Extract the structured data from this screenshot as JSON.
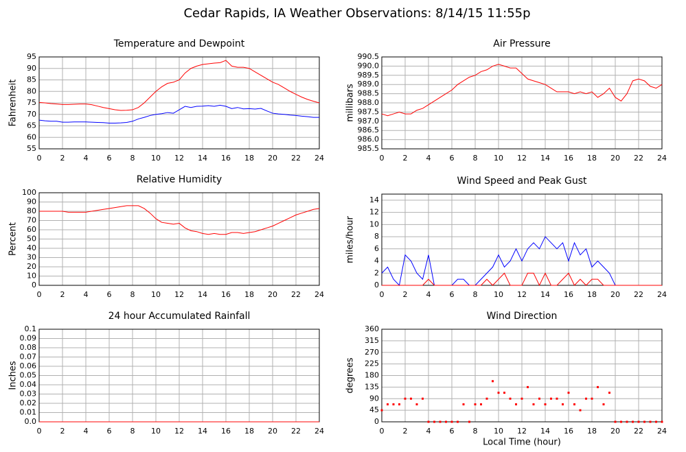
{
  "title": "Cedar Rapids, IA Weather Observations: 8/14/15 11:55p",
  "chart_data": [
    {
      "type": "line",
      "title": "Temperature and Dewpoint",
      "ylabel": "Fahrenheit",
      "x": [
        0,
        0.5,
        1,
        1.5,
        2,
        2.5,
        3,
        3.5,
        4,
        4.5,
        5,
        5.5,
        6,
        6.5,
        7,
        7.5,
        8,
        8.5,
        9,
        9.5,
        10,
        10.5,
        11,
        11.5,
        12,
        12.5,
        13,
        13.5,
        14,
        14.5,
        15,
        15.5,
        16,
        16.5,
        17,
        17.5,
        18,
        18.5,
        19,
        19.5,
        20,
        20.5,
        21,
        21.5,
        22,
        22.5,
        23,
        23.5,
        24
      ],
      "series": [
        {
          "color": "#ff0000",
          "values": [
            75.2,
            75,
            74.7,
            74.5,
            74.3,
            74.3,
            74.4,
            74.5,
            74.5,
            74.2,
            73.6,
            73,
            72.5,
            72,
            71.7,
            71.8,
            72,
            73,
            75,
            77.5,
            80,
            82,
            83.5,
            84,
            85,
            88,
            90,
            91,
            91.7,
            92,
            92.3,
            92.5,
            93.5,
            91,
            90.5,
            90.5,
            90,
            88.5,
            87,
            85.5,
            84,
            83,
            81.5,
            80,
            78.7,
            77.5,
            76.5,
            75.7,
            75
          ]
        },
        {
          "color": "#0000ff",
          "values": [
            67.5,
            67.2,
            67,
            67,
            66.6,
            66.6,
            66.7,
            66.7,
            66.7,
            66.6,
            66.5,
            66.4,
            66.2,
            66.2,
            66.3,
            66.5,
            67,
            68,
            68.7,
            69.5,
            70,
            70.3,
            70.8,
            70.5,
            72,
            73.5,
            73,
            73.5,
            73.6,
            73.8,
            73.5,
            74,
            73.5,
            72.5,
            73,
            72.4,
            72.5,
            72.3,
            72.6,
            71.5,
            70.5,
            70.2,
            70,
            69.7,
            69.5,
            69.2,
            69,
            68.7,
            68.7
          ]
        }
      ],
      "xlim": [
        0,
        24
      ],
      "xticks": [
        0,
        2,
        4,
        6,
        8,
        10,
        12,
        14,
        16,
        18,
        20,
        22,
        24
      ],
      "ylim": [
        55,
        95
      ],
      "yticks": [
        55,
        60,
        65,
        70,
        75,
        80,
        85,
        90,
        95
      ],
      "grid": true
    },
    {
      "type": "line",
      "title": "Air Pressure",
      "ylabel": "millibars",
      "x": [
        0,
        0.5,
        1,
        1.5,
        2,
        2.5,
        3,
        3.5,
        4,
        4.5,
        5,
        5.5,
        6,
        6.5,
        7,
        7.5,
        8,
        8.5,
        9,
        9.5,
        10,
        10.5,
        11,
        11.5,
        12,
        12.5,
        13,
        13.5,
        14,
        14.5,
        15,
        15.5,
        16,
        16.5,
        17,
        17.5,
        18,
        18.5,
        19,
        19.5,
        20,
        20.5,
        21,
        21.5,
        22,
        22.5,
        23,
        23.5,
        24
      ],
      "series": [
        {
          "color": "#ff0000",
          "values": [
            987.4,
            987.3,
            987.4,
            987.5,
            987.4,
            987.4,
            987.6,
            987.7,
            987.9,
            988.1,
            988.3,
            988.5,
            988.7,
            989,
            989.2,
            989.4,
            989.5,
            989.7,
            989.8,
            990,
            990.1,
            990,
            989.9,
            989.9,
            989.6,
            989.3,
            989.2,
            989.1,
            989,
            988.8,
            988.6,
            988.6,
            988.6,
            988.5,
            988.6,
            988.5,
            988.6,
            988.3,
            988.5,
            988.8,
            988.3,
            988.1,
            988.5,
            989.2,
            989.3,
            989.2,
            988.9,
            988.8,
            989
          ]
        }
      ],
      "xlim": [
        0,
        24
      ],
      "xticks": [
        0,
        2,
        4,
        6,
        8,
        10,
        12,
        14,
        16,
        18,
        20,
        22,
        24
      ],
      "ylim": [
        985.5,
        990.5
      ],
      "yticks": [
        985.5,
        {
          "value": 986,
          "label": "986.0"
        },
        986.5,
        {
          "value": 987,
          "label": "987.0"
        },
        987.5,
        {
          "value": 988,
          "label": "988.0"
        },
        988.5,
        {
          "value": 989,
          "label": "989.0"
        },
        989.5,
        {
          "value": 990,
          "label": "990.0"
        },
        990.5
      ],
      "grid": true
    },
    {
      "type": "line",
      "title": "Relative Humidity",
      "ylabel": "Percent",
      "x": [
        0,
        0.5,
        1,
        1.5,
        2,
        2.5,
        3,
        3.5,
        4,
        4.5,
        5,
        5.5,
        6,
        6.5,
        7,
        7.5,
        8,
        8.5,
        9,
        9.5,
        10,
        10.5,
        11,
        11.5,
        12,
        12.5,
        13,
        13.5,
        14,
        14.5,
        15,
        15.5,
        16,
        16.5,
        17,
        17.5,
        18,
        18.5,
        19,
        19.5,
        20,
        20.5,
        21,
        21.5,
        22,
        22.5,
        23,
        23.5,
        24
      ],
      "series": [
        {
          "color": "#ff0000",
          "values": [
            80,
            80,
            80,
            80,
            80,
            79,
            79,
            79,
            79,
            80,
            81,
            82,
            83,
            84,
            85,
            86,
            86,
            86,
            83,
            78,
            72,
            68,
            67,
            66,
            67,
            62,
            59,
            58,
            56,
            55,
            56,
            55,
            55,
            57,
            57,
            56,
            57,
            58,
            60,
            62,
            64,
            67,
            70,
            73,
            76,
            78,
            80,
            82,
            83
          ]
        }
      ],
      "xlim": [
        0,
        24
      ],
      "xticks": [
        0,
        2,
        4,
        6,
        8,
        10,
        12,
        14,
        16,
        18,
        20,
        22,
        24
      ],
      "ylim": [
        0,
        100
      ],
      "yticks": [
        0,
        10,
        20,
        30,
        40,
        50,
        60,
        70,
        80,
        90,
        100
      ],
      "grid": true
    },
    {
      "type": "line",
      "title": "Wind Speed and Peak Gust",
      "ylabel": "miles/hour",
      "x": [
        0,
        0.5,
        1,
        1.5,
        2,
        2.5,
        3,
        3.5,
        4,
        4.5,
        5,
        5.5,
        6,
        6.5,
        7,
        7.5,
        8,
        8.5,
        9,
        9.5,
        10,
        10.5,
        11,
        11.5,
        12,
        12.5,
        13,
        13.5,
        14,
        14.5,
        15,
        15.5,
        16,
        16.5,
        17,
        17.5,
        18,
        18.5,
        19,
        19.5,
        20,
        20.5,
        21,
        21.5,
        22,
        22.5,
        23,
        23.5,
        24
      ],
      "series": [
        {
          "color": "#0000ff",
          "values": [
            2,
            3,
            1,
            0,
            5,
            4,
            2,
            1,
            5,
            0,
            0,
            0,
            0,
            1,
            1,
            0,
            0,
            1,
            2,
            3,
            5,
            3,
            4,
            6,
            4,
            6,
            7,
            6,
            8,
            7,
            6,
            7,
            4,
            7,
            5,
            6,
            3,
            4,
            3,
            2,
            0,
            0,
            0,
            0,
            0,
            0,
            0,
            0,
            0
          ]
        },
        {
          "color": "#ff0000",
          "values": [
            0,
            0,
            0,
            0,
            0,
            0,
            0,
            0,
            1,
            0,
            0,
            0,
            0,
            0,
            0,
            0,
            0,
            0,
            1,
            0,
            1,
            2,
            0,
            0,
            0,
            2,
            2,
            0,
            2,
            0,
            0,
            1,
            2,
            0,
            1,
            0,
            1,
            1,
            0,
            0,
            0,
            0,
            0,
            0,
            0,
            0,
            0,
            0,
            0
          ]
        }
      ],
      "xlim": [
        0,
        24
      ],
      "xticks": [
        0,
        2,
        4,
        6,
        8,
        10,
        12,
        14,
        16,
        18,
        20,
        22,
        24
      ],
      "ylim": [
        0,
        15
      ],
      "yticks": [
        0,
        2,
        4,
        6,
        8,
        10,
        12,
        14
      ],
      "grid": true
    },
    {
      "type": "line",
      "title": "24 hour Accumulated Rainfall",
      "ylabel": "Inches",
      "x": [
        0,
        24
      ],
      "series": [
        {
          "color": "#ff0000",
          "values": [
            0,
            0
          ]
        }
      ],
      "xlim": [
        0,
        24
      ],
      "xticks": [
        0,
        2,
        4,
        6,
        8,
        10,
        12,
        14,
        16,
        18,
        20,
        22,
        24
      ],
      "ylim": [
        0,
        0.1
      ],
      "yticks": [
        {
          "value": 0,
          "label": "0.0"
        },
        0.01,
        0.02,
        0.03,
        0.04,
        0.05,
        0.06,
        0.07,
        0.08,
        0.09,
        0.1
      ],
      "grid": true
    },
    {
      "type": "scatter",
      "title": "Wind Direction",
      "ylabel": "degrees",
      "xlabel": "Local Time (hour)",
      "x": [
        0,
        0.5,
        1,
        1.5,
        2,
        2.5,
        3,
        3.5,
        4,
        4.5,
        5,
        5.5,
        6,
        6.5,
        7,
        7.5,
        8,
        8.5,
        9,
        9.5,
        10,
        10.5,
        11,
        11.5,
        12,
        12.5,
        13,
        13.5,
        14,
        14.5,
        15,
        15.5,
        16,
        16.5,
        17,
        17.5,
        18,
        18.5,
        19,
        19.5,
        20,
        20.5,
        21,
        21.5,
        22,
        22.5,
        23,
        23.5,
        24
      ],
      "series": [
        {
          "color": "#ff0000",
          "values": [
            45,
            68,
            68,
            68,
            90,
            90,
            68,
            90,
            0,
            0,
            0,
            0,
            0,
            0,
            68,
            0,
            68,
            68,
            90,
            158,
            113,
            113,
            90,
            68,
            90,
            135,
            68,
            90,
            68,
            90,
            90,
            68,
            113,
            68,
            45,
            90,
            90,
            135,
            68,
            113,
            0,
            0,
            0,
            0,
            0,
            0,
            0,
            0,
            0
          ]
        }
      ],
      "xlim": [
        0,
        24
      ],
      "xticks": [
        0,
        2,
        4,
        6,
        8,
        10,
        12,
        14,
        16,
        18,
        20,
        22,
        24
      ],
      "ylim": [
        0,
        360
      ],
      "yticks": [
        0,
        45,
        90,
        135,
        180,
        225,
        270,
        315,
        360
      ],
      "grid": true
    }
  ]
}
